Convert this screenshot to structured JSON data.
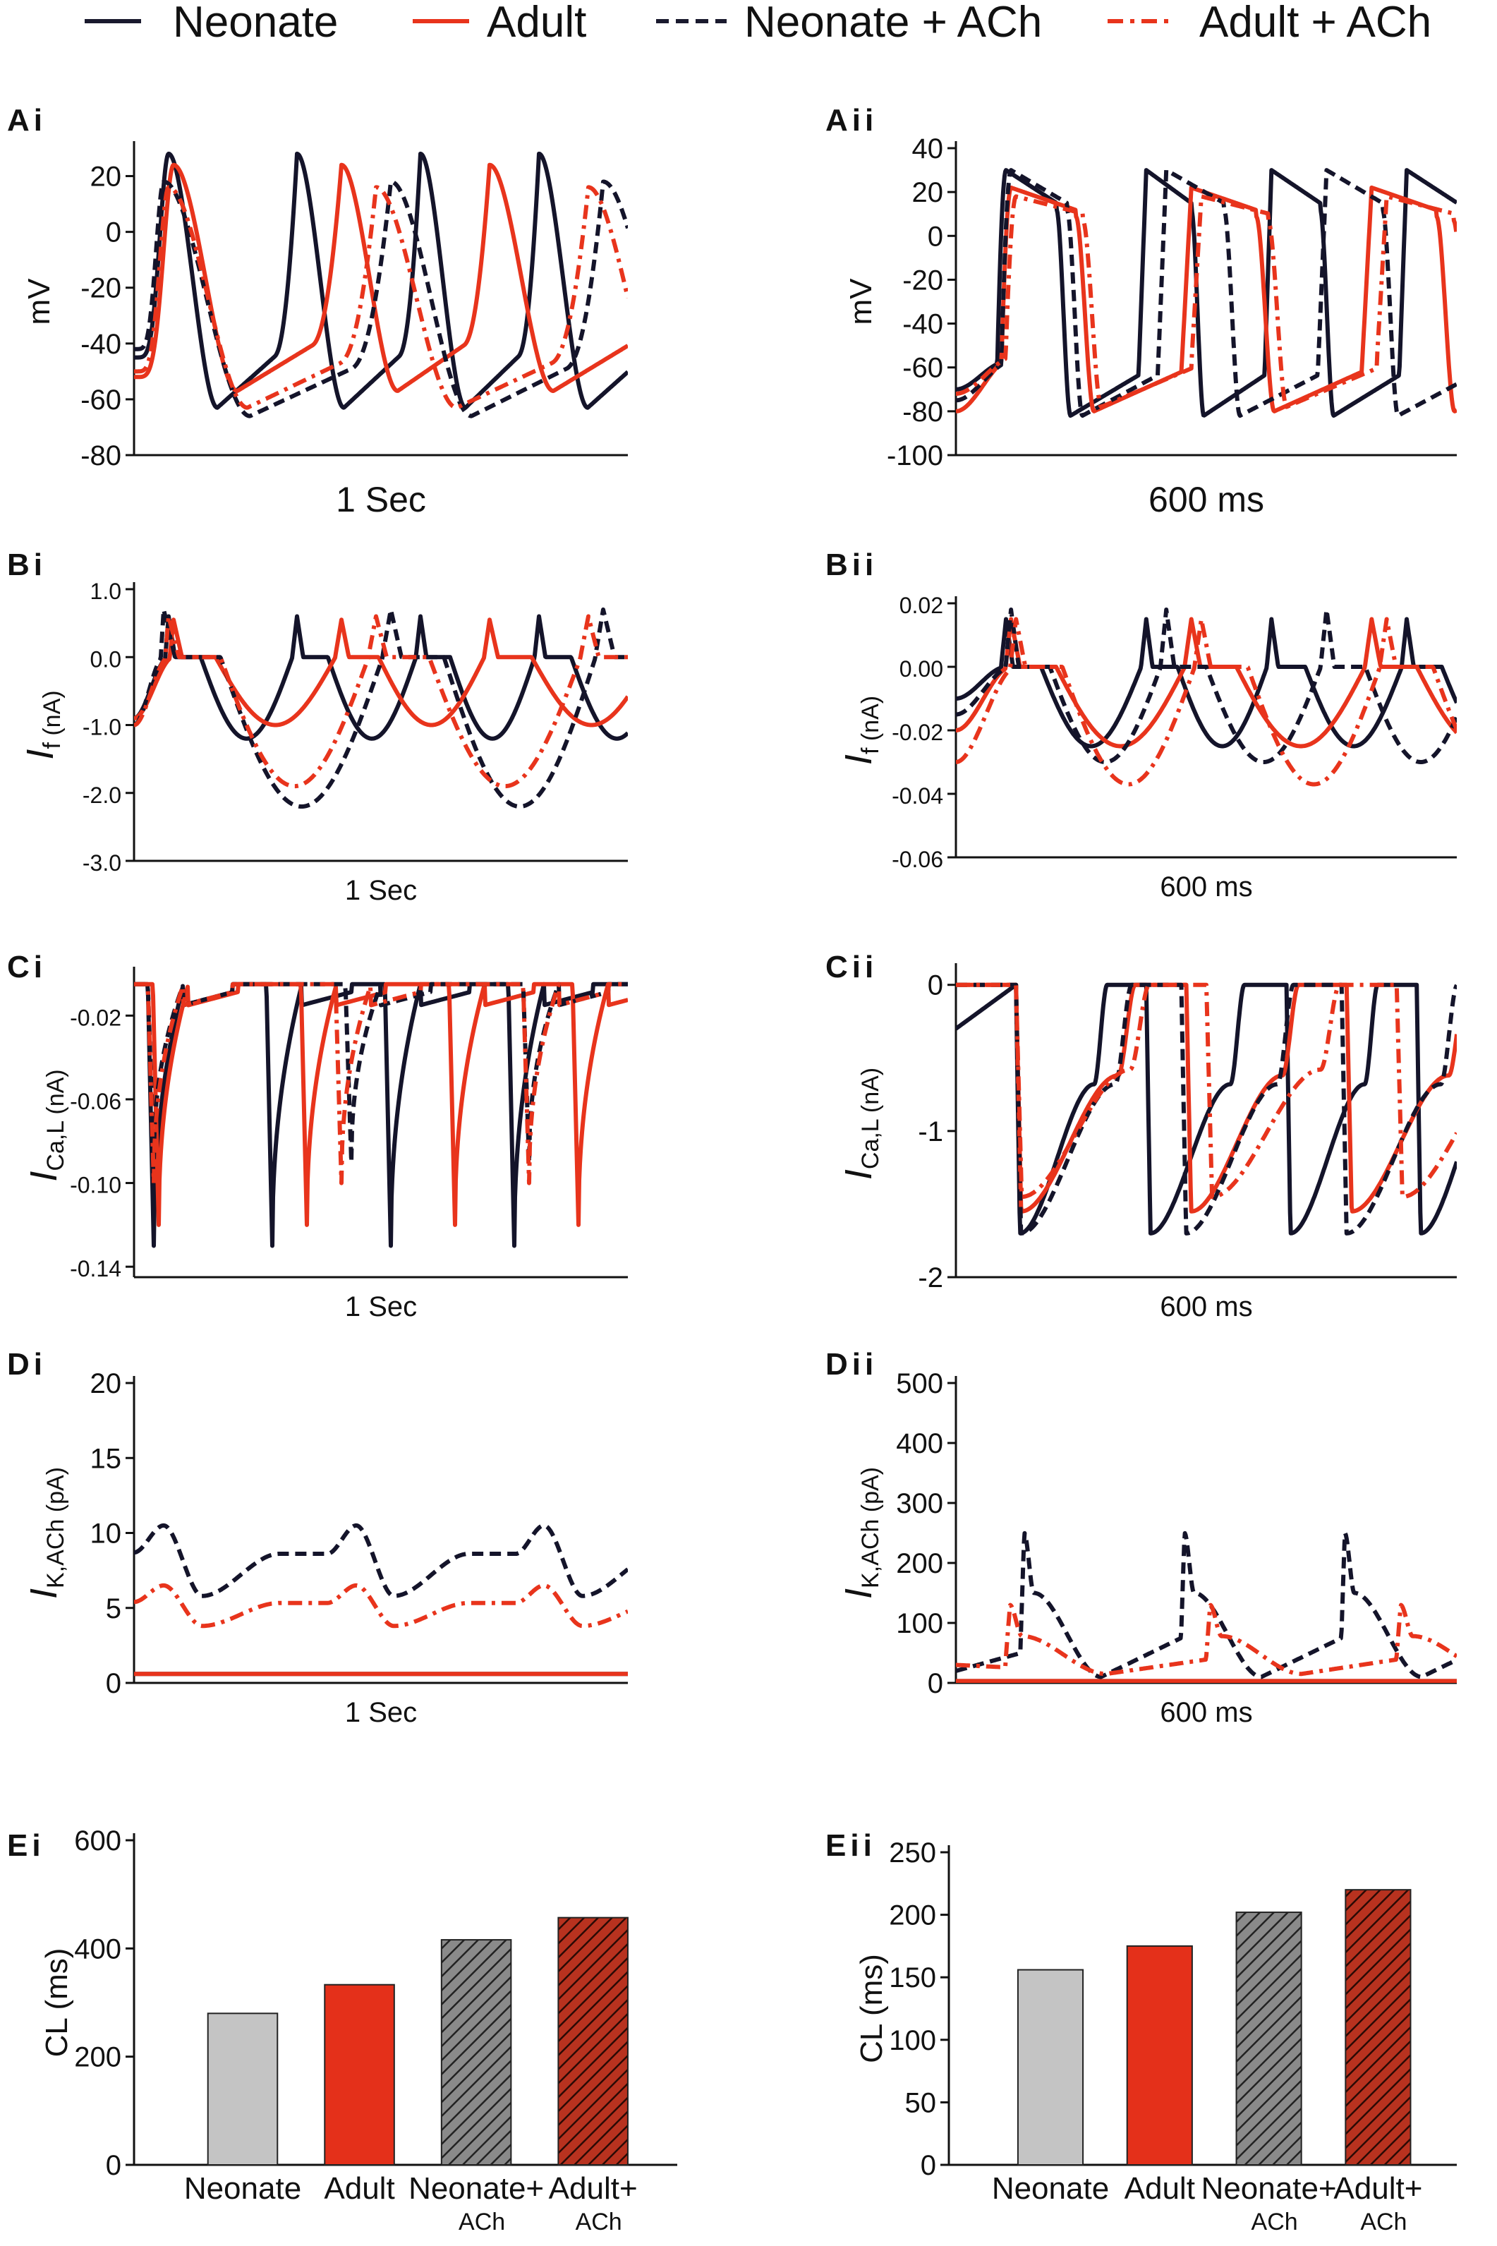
{
  "figure": {
    "legend": [
      {
        "label": "Neonate",
        "color": "#1a1a2e",
        "dash": "solid"
      },
      {
        "label": "Adult",
        "color": "#e8341c",
        "dash": "solid"
      },
      {
        "label": "Neonate + ACh",
        "color": "#1a1a2e",
        "dash": "dashed"
      },
      {
        "label": "Adult + ACh",
        "color": "#e8341c",
        "dash": "dashdot"
      }
    ]
  },
  "chart_data": [
    {
      "id": "Ai",
      "panel_label": "Ai",
      "type": "line",
      "ylabel": "mV",
      "ylabel_sub": "",
      "xcaption": "1 Sec",
      "ylim": [
        -80,
        30
      ],
      "yticks": [
        {
          "v": 20,
          "t": "20"
        },
        {
          "v": 0,
          "t": "0"
        },
        {
          "v": -20,
          "t": "-20"
        },
        {
          "v": -40,
          "t": "-40"
        },
        {
          "v": -60,
          "t": "-60"
        },
        {
          "v": -80,
          "t": "-80"
        }
      ],
      "series": [
        {
          "name": "Neonate",
          "kind": "spike",
          "peaks": [
            0.07,
            0.33,
            0.58,
            0.82
          ],
          "top": 28,
          "bottom": -63,
          "start": -45
        },
        {
          "name": "Adult",
          "kind": "spike",
          "peaks": [
            0.08,
            0.42,
            0.72
          ],
          "top": 24,
          "bottom": -57,
          "start": -52
        },
        {
          "name": "Neonate + ACh",
          "kind": "spike",
          "peaks": [
            0.06,
            0.52,
            0.95
          ],
          "top": 18,
          "bottom": -66,
          "start": -42
        },
        {
          "name": "Adult + ACh",
          "kind": "spike",
          "peaks": [
            0.07,
            0.49,
            0.92
          ],
          "top": 16,
          "bottom": -63,
          "start": -50
        }
      ]
    },
    {
      "id": "Aii",
      "panel_label": "Aii",
      "type": "line",
      "ylabel": "mV",
      "ylabel_sub": "",
      "xcaption": "600 ms",
      "ylim": [
        -100,
        40
      ],
      "yticks": [
        {
          "v": 40,
          "t": "40"
        },
        {
          "v": 20,
          "t": "20"
        },
        {
          "v": 0,
          "t": "0"
        },
        {
          "v": -20,
          "t": "-20"
        },
        {
          "v": -40,
          "t": "-40"
        },
        {
          "v": -60,
          "t": "-60"
        },
        {
          "v": -80,
          "t": "-80"
        },
        {
          "v": -100,
          "t": "-100"
        }
      ],
      "series": [
        {
          "name": "Neonate",
          "kind": "plateau",
          "peaks": [
            0.1,
            0.38,
            0.63,
            0.9
          ],
          "top": 30,
          "bottom": -82,
          "start": -70
        },
        {
          "name": "Adult",
          "kind": "plateau",
          "peaks": [
            0.11,
            0.47,
            0.83
          ],
          "top": 22,
          "bottom": -80,
          "start": -80
        },
        {
          "name": "Neonate + ACh",
          "kind": "plateau",
          "peaks": [
            0.11,
            0.42,
            0.74
          ],
          "top": 30,
          "bottom": -82,
          "start": -75
        },
        {
          "name": "Adult + ACh",
          "kind": "plateau",
          "peaks": [
            0.12,
            0.49,
            0.86
          ],
          "top": 18,
          "bottom": -78,
          "start": -72
        }
      ]
    },
    {
      "id": "Bi",
      "panel_label": "Bi",
      "type": "line",
      "ylabel": "I",
      "ylabel_sub": "f (nA)",
      "xcaption": "1 Sec",
      "ylim": [
        -3.0,
        1.0
      ],
      "yticks": [
        {
          "v": 1.0,
          "t": "1.0"
        },
        {
          "v": 0.0,
          "t": "0.0"
        },
        {
          "v": -1.0,
          "t": "-1.0"
        },
        {
          "v": -2.0,
          "t": "-2.0"
        },
        {
          "v": -3.0,
          "t": "-3.0"
        }
      ],
      "series": [
        {
          "name": "Neonate",
          "kind": "ifpulse",
          "peaks": [
            0.07,
            0.33,
            0.58,
            0.82
          ],
          "top": 0.6,
          "bottom": -1.2,
          "start": -0.9
        },
        {
          "name": "Adult",
          "kind": "ifpulse",
          "peaks": [
            0.08,
            0.42,
            0.72
          ],
          "top": 0.55,
          "bottom": -1.0,
          "start": -0.9
        },
        {
          "name": "Neonate + ACh",
          "kind": "ifpulse",
          "peaks": [
            0.06,
            0.52,
            0.95
          ],
          "top": 0.7,
          "bottom": -2.2,
          "start": -1.0
        },
        {
          "name": "Adult + ACh",
          "kind": "ifpulse",
          "peaks": [
            0.07,
            0.49,
            0.92
          ],
          "top": 0.6,
          "bottom": -1.9,
          "start": -1.0
        }
      ]
    },
    {
      "id": "Bii",
      "panel_label": "Bii",
      "type": "line",
      "ylabel": "I",
      "ylabel_sub": "f (nA)",
      "xcaption": "600 ms",
      "ylim": [
        -0.06,
        0.02
      ],
      "yticks": [
        {
          "v": 0.02,
          "t": "0.02"
        },
        {
          "v": 0.0,
          "t": "0.00"
        },
        {
          "v": -0.02,
          "t": "-0.02"
        },
        {
          "v": -0.04,
          "t": "-0.04"
        },
        {
          "v": -0.06,
          "t": "-0.06"
        }
      ],
      "series": [
        {
          "name": "Neonate",
          "kind": "ifpulse",
          "peaks": [
            0.1,
            0.38,
            0.63,
            0.9
          ],
          "top": 0.015,
          "bottom": -0.025,
          "start": -0.01
        },
        {
          "name": "Adult",
          "kind": "ifpulse",
          "peaks": [
            0.11,
            0.47,
            0.83
          ],
          "top": 0.015,
          "bottom": -0.025,
          "start": -0.02
        },
        {
          "name": "Neonate + ACh",
          "kind": "ifpulse",
          "peaks": [
            0.11,
            0.42,
            0.74
          ],
          "top": 0.018,
          "bottom": -0.03,
          "start": -0.015
        },
        {
          "name": "Adult + ACh",
          "kind": "ifpulse",
          "peaks": [
            0.12,
            0.49,
            0.86
          ],
          "top": 0.015,
          "bottom": -0.037,
          "start": -0.03
        }
      ]
    },
    {
      "id": "Ci",
      "panel_label": "Ci",
      "type": "line",
      "ylabel": "I",
      "ylabel_sub": "Ca,L (nA)",
      "xcaption": "1 Sec",
      "ylim": [
        -0.145,
        0.0
      ],
      "yticks": [
        {
          "v": -0.02,
          "t": "-0.02"
        },
        {
          "v": -0.06,
          "t": "-0.06"
        },
        {
          "v": -0.1,
          "t": "-0.10"
        },
        {
          "v": -0.14,
          "t": "-0.14"
        }
      ],
      "series": [
        {
          "name": "Neonate",
          "kind": "dip",
          "peaks": [
            0.04,
            0.28,
            0.52,
            0.77
          ],
          "top": -0.005,
          "bottom": -0.13,
          "start": -0.005
        },
        {
          "name": "Adult",
          "kind": "dip",
          "peaks": [
            0.05,
            0.35,
            0.65,
            0.9
          ],
          "top": -0.005,
          "bottom": -0.12,
          "start": -0.005
        },
        {
          "name": "Neonate + ACh",
          "kind": "dip",
          "peaks": [
            0.04,
            0.44,
            0.8
          ],
          "top": -0.005,
          "bottom": -0.09,
          "start": -0.005
        },
        {
          "name": "Adult + ACh",
          "kind": "dip",
          "peaks": [
            0.04,
            0.42,
            0.8
          ],
          "top": -0.005,
          "bottom": -0.1,
          "start": -0.005
        }
      ]
    },
    {
      "id": "Cii",
      "panel_label": "Cii",
      "type": "line",
      "ylabel": "I",
      "ylabel_sub": "Ca,L (nA)",
      "xcaption": "600 ms",
      "ylim": [
        -2,
        0.1
      ],
      "yticks": [
        {
          "v": 0,
          "t": "0"
        },
        {
          "v": -1,
          "t": "-1"
        },
        {
          "v": -2,
          "t": "-2"
        }
      ],
      "series": [
        {
          "name": "Neonate",
          "kind": "cdip",
          "peaks": [
            0.12,
            0.38,
            0.66,
            0.92
          ],
          "top": 0,
          "bottom": -1.7,
          "start": -0.3
        },
        {
          "name": "Adult",
          "kind": "cdip",
          "peaks": [
            0.12,
            0.46,
            0.78
          ],
          "top": 0,
          "bottom": -1.55,
          "start": 0
        },
        {
          "name": "Neonate + ACh",
          "kind": "cdip",
          "peaks": [
            0.12,
            0.45,
            0.77
          ],
          "top": 0,
          "bottom": -1.7,
          "start": 0
        },
        {
          "name": "Adult + ACh",
          "kind": "cdip",
          "peaks": [
            0.12,
            0.5,
            0.88
          ],
          "top": 0,
          "bottom": -1.45,
          "start": 0
        }
      ]
    },
    {
      "id": "Di",
      "panel_label": "Di",
      "type": "line",
      "ylabel": "I",
      "ylabel_sub": "K,ACh (pA)",
      "xcaption": "1 Sec",
      "ylim": [
        0,
        20
      ],
      "yticks": [
        {
          "v": 20,
          "t": "20"
        },
        {
          "v": 15,
          "t": "15"
        },
        {
          "v": 10,
          "t": "10"
        },
        {
          "v": 5,
          "t": "5"
        },
        {
          "v": 0,
          "t": "0"
        }
      ],
      "series": [
        {
          "name": "Neonate",
          "kind": "flat",
          "peaks": [],
          "top": 0.6,
          "bottom": 0.6,
          "start": 0.6
        },
        {
          "name": "Adult",
          "kind": "flat",
          "peaks": [],
          "top": 0.6,
          "bottom": 0.6,
          "start": 0.6
        },
        {
          "name": "Neonate + ACh",
          "kind": "hump",
          "peaks": [
            0.06,
            0.45,
            0.83
          ],
          "top": 10.5,
          "bottom": 5.8,
          "start": 8.7
        },
        {
          "name": "Adult + ACh",
          "kind": "hump",
          "peaks": [
            0.06,
            0.45,
            0.83
          ],
          "top": 6.5,
          "bottom": 3.8,
          "start": 5.4
        }
      ]
    },
    {
      "id": "Dii",
      "panel_label": "Dii",
      "type": "line",
      "ylabel": "I",
      "ylabel_sub": "K,ACh (pA)",
      "xcaption": "600 ms",
      "ylim": [
        0,
        500
      ],
      "yticks": [
        {
          "v": 500,
          "t": "500"
        },
        {
          "v": 400,
          "t": "400"
        },
        {
          "v": 300,
          "t": "300"
        },
        {
          "v": 200,
          "t": "200"
        },
        {
          "v": 100,
          "t": "100"
        },
        {
          "v": 0,
          "t": "0"
        }
      ],
      "series": [
        {
          "name": "Neonate",
          "kind": "flat",
          "peaks": [],
          "top": 3,
          "bottom": 3,
          "start": 3
        },
        {
          "name": "Adult",
          "kind": "flat",
          "peaks": [],
          "top": 3,
          "bottom": 3,
          "start": 3
        },
        {
          "name": "Neonate + ACh",
          "kind": "kspike",
          "peaks": [
            0.13,
            0.45,
            0.77
          ],
          "top": 250,
          "bottom": 10,
          "start": 20
        },
        {
          "name": "Adult + ACh",
          "kind": "kspike",
          "peaks": [
            0.1,
            0.5,
            0.88
          ],
          "top": 130,
          "bottom": 15,
          "start": 30
        }
      ]
    },
    {
      "id": "Ei",
      "panel_label": "Ei",
      "type": "bar",
      "ylabel": "CL (ms)",
      "ylabel_sub": "",
      "xcaption": "",
      "ylim": [
        0,
        600
      ],
      "yticks": [
        {
          "v": 600,
          "t": "600"
        },
        {
          "v": 400,
          "t": "400"
        },
        {
          "v": 200,
          "t": "200"
        },
        {
          "v": 0,
          "t": "0"
        }
      ],
      "categories": [
        {
          "label": "Neonate",
          "sub": ""
        },
        {
          "label": "Adult",
          "sub": ""
        },
        {
          "label": "Neonate+",
          "sub": "ACh"
        },
        {
          "label": "Adult+",
          "sub": "ACh"
        }
      ],
      "values": [
        280,
        333,
        416,
        457
      ]
    },
    {
      "id": "Eii",
      "panel_label": "Eii",
      "type": "bar",
      "ylabel": "CL (ms)",
      "ylabel_sub": "",
      "xcaption": "",
      "ylim": [
        0,
        250
      ],
      "yticks": [
        {
          "v": 250,
          "t": "250"
        },
        {
          "v": 200,
          "t": "200"
        },
        {
          "v": 150,
          "t": "150"
        },
        {
          "v": 100,
          "t": "100"
        },
        {
          "v": 50,
          "t": "50"
        },
        {
          "v": 0,
          "t": "0"
        }
      ],
      "categories": [
        {
          "label": "Neonate",
          "sub": ""
        },
        {
          "label": "Adult",
          "sub": ""
        },
        {
          "label": "Neonate+",
          "sub": "ACh"
        },
        {
          "label": "Adult+",
          "sub": "ACh"
        }
      ],
      "values": [
        156,
        175,
        202,
        220
      ]
    }
  ]
}
